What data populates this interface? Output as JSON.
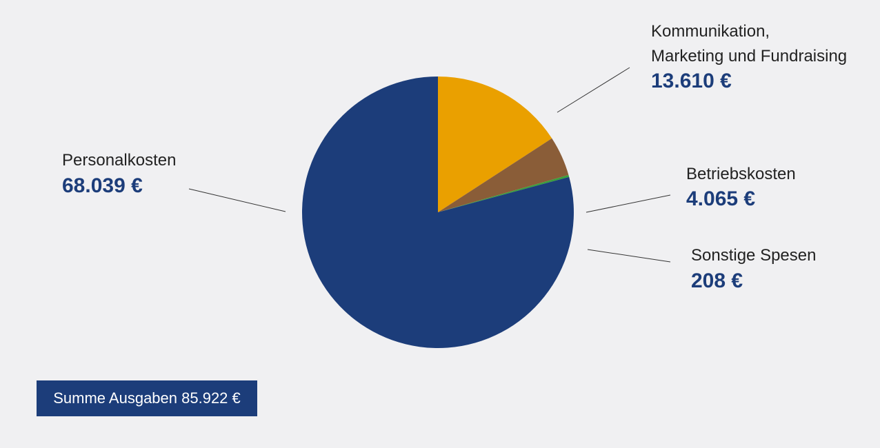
{
  "chart_data": {
    "type": "pie",
    "categories": [
      "Kommunikation,\nMarketing und Fundraising",
      "Betriebskosten",
      "Sonstige Spesen",
      "Personalkosten"
    ],
    "values": [
      13610,
      4065,
      208,
      68039
    ],
    "value_labels": [
      "13.610 €",
      "4.065 €",
      "208 €",
      "68.039 €"
    ],
    "colors": [
      "#eaa000",
      "#8a5d38",
      "#3a9e3c",
      "#1c3d7a"
    ],
    "total_label": "Summe Ausgaben 85.922 €"
  }
}
